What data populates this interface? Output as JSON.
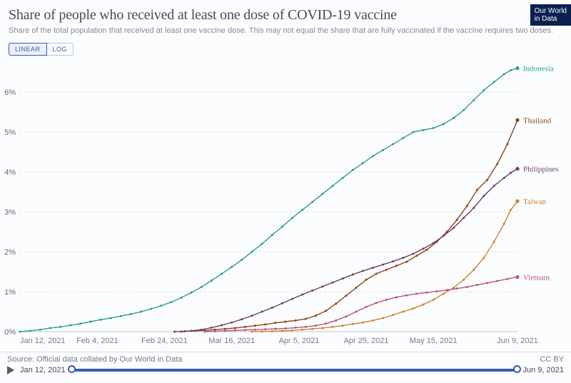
{
  "header": {
    "title": "Share of people who received at least one dose of COVID-19 vaccine",
    "subtitle": "Share of the total population that received at least one vaccine dose. This may not equal the share that are fully vaccinated if the vaccine requires two doses.",
    "logo_line1": "Our World",
    "logo_line2": "in Data"
  },
  "scale": {
    "linear": "LINEAR",
    "log": "LOG",
    "active": "linear"
  },
  "chart": {
    "type": "line",
    "background": "#fbfcfe",
    "grid_color": "#dcdfe6",
    "x_domain_days": [
      0,
      148
    ],
    "ylim": [
      0,
      6.7
    ],
    "yticks": [
      {
        "v": 0,
        "label": "0%"
      },
      {
        "v": 1,
        "label": "1%"
      },
      {
        "v": 2,
        "label": "2%"
      },
      {
        "v": 3,
        "label": "3%"
      },
      {
        "v": 4,
        "label": "4%"
      },
      {
        "v": 5,
        "label": "5%"
      },
      {
        "v": 6,
        "label": "6%"
      }
    ],
    "xticks": [
      {
        "d": 0,
        "label": "Jan 12, 2021"
      },
      {
        "d": 23,
        "label": "Feb 4, 2021"
      },
      {
        "d": 43,
        "label": "Feb 24, 2021"
      },
      {
        "d": 63,
        "label": "Mar 16, 2021"
      },
      {
        "d": 83,
        "label": "Apr 5, 2021"
      },
      {
        "d": 103,
        "label": "Apr 25, 2021"
      },
      {
        "d": 123,
        "label": "May 15, 2021"
      },
      {
        "d": 148,
        "label": "Jun 9, 2021"
      }
    ],
    "marker_radius": 1.5,
    "line_width": 1.4,
    "series": [
      {
        "name": "Indonesia",
        "color": "#2a9d8f",
        "points": [
          [
            0,
            0.0
          ],
          [
            3,
            0.02
          ],
          [
            6,
            0.05
          ],
          [
            9,
            0.09
          ],
          [
            12,
            0.12
          ],
          [
            15,
            0.16
          ],
          [
            18,
            0.2
          ],
          [
            21,
            0.25
          ],
          [
            24,
            0.3
          ],
          [
            27,
            0.34
          ],
          [
            30,
            0.39
          ],
          [
            33,
            0.44
          ],
          [
            36,
            0.5
          ],
          [
            39,
            0.57
          ],
          [
            42,
            0.65
          ],
          [
            45,
            0.74
          ],
          [
            48,
            0.85
          ],
          [
            51,
            0.98
          ],
          [
            54,
            1.12
          ],
          [
            57,
            1.28
          ],
          [
            60,
            1.45
          ],
          [
            63,
            1.62
          ],
          [
            66,
            1.8
          ],
          [
            69,
            2.0
          ],
          [
            72,
            2.2
          ],
          [
            75,
            2.42
          ],
          [
            78,
            2.63
          ],
          [
            81,
            2.85
          ],
          [
            84,
            3.05
          ],
          [
            87,
            3.25
          ],
          [
            90,
            3.45
          ],
          [
            93,
            3.65
          ],
          [
            96,
            3.85
          ],
          [
            99,
            4.05
          ],
          [
            102,
            4.22
          ],
          [
            105,
            4.4
          ],
          [
            108,
            4.55
          ],
          [
            111,
            4.7
          ],
          [
            114,
            4.85
          ],
          [
            117,
            5.0
          ],
          [
            120,
            5.05
          ],
          [
            123,
            5.1
          ],
          [
            126,
            5.2
          ],
          [
            129,
            5.35
          ],
          [
            132,
            5.55
          ],
          [
            135,
            5.8
          ],
          [
            138,
            6.05
          ],
          [
            141,
            6.25
          ],
          [
            144,
            6.45
          ],
          [
            146,
            6.55
          ],
          [
            148,
            6.6
          ]
        ]
      },
      {
        "name": "Thailand",
        "color": "#8b4513",
        "points": [
          [
            46,
            0.0
          ],
          [
            49,
            0.01
          ],
          [
            52,
            0.02
          ],
          [
            55,
            0.03
          ],
          [
            58,
            0.05
          ],
          [
            61,
            0.07
          ],
          [
            64,
            0.09
          ],
          [
            67,
            0.12
          ],
          [
            70,
            0.15
          ],
          [
            73,
            0.18
          ],
          [
            76,
            0.22
          ],
          [
            79,
            0.25
          ],
          [
            82,
            0.28
          ],
          [
            85,
            0.32
          ],
          [
            88,
            0.4
          ],
          [
            91,
            0.52
          ],
          [
            94,
            0.7
          ],
          [
            97,
            0.9
          ],
          [
            100,
            1.1
          ],
          [
            103,
            1.3
          ],
          [
            106,
            1.45
          ],
          [
            109,
            1.55
          ],
          [
            112,
            1.65
          ],
          [
            115,
            1.75
          ],
          [
            118,
            1.9
          ],
          [
            121,
            2.05
          ],
          [
            124,
            2.25
          ],
          [
            127,
            2.5
          ],
          [
            130,
            2.8
          ],
          [
            133,
            3.15
          ],
          [
            136,
            3.55
          ],
          [
            139,
            3.8
          ],
          [
            142,
            4.2
          ],
          [
            145,
            4.7
          ],
          [
            148,
            5.3
          ]
        ]
      },
      {
        "name": "Philippines",
        "color": "#6b3e6b",
        "points": [
          [
            48,
            0.0
          ],
          [
            51,
            0.02
          ],
          [
            54,
            0.05
          ],
          [
            57,
            0.1
          ],
          [
            60,
            0.16
          ],
          [
            63,
            0.23
          ],
          [
            66,
            0.31
          ],
          [
            69,
            0.4
          ],
          [
            72,
            0.5
          ],
          [
            75,
            0.6
          ],
          [
            78,
            0.71
          ],
          [
            81,
            0.82
          ],
          [
            84,
            0.93
          ],
          [
            87,
            1.03
          ],
          [
            90,
            1.13
          ],
          [
            93,
            1.23
          ],
          [
            96,
            1.33
          ],
          [
            99,
            1.43
          ],
          [
            102,
            1.52
          ],
          [
            105,
            1.6
          ],
          [
            108,
            1.68
          ],
          [
            111,
            1.76
          ],
          [
            114,
            1.85
          ],
          [
            117,
            1.95
          ],
          [
            120,
            2.08
          ],
          [
            123,
            2.22
          ],
          [
            126,
            2.4
          ],
          [
            129,
            2.6
          ],
          [
            132,
            2.85
          ],
          [
            135,
            3.1
          ],
          [
            138,
            3.4
          ],
          [
            141,
            3.65
          ],
          [
            144,
            3.85
          ],
          [
            146,
            3.98
          ],
          [
            148,
            4.08
          ]
        ]
      },
      {
        "name": "Taiwan",
        "color": "#c9842c",
        "points": [
          [
            69,
            0.0
          ],
          [
            72,
            0.005
          ],
          [
            75,
            0.01
          ],
          [
            78,
            0.02
          ],
          [
            81,
            0.03
          ],
          [
            84,
            0.05
          ],
          [
            87,
            0.07
          ],
          [
            90,
            0.09
          ],
          [
            93,
            0.12
          ],
          [
            96,
            0.15
          ],
          [
            99,
            0.19
          ],
          [
            102,
            0.23
          ],
          [
            105,
            0.28
          ],
          [
            108,
            0.34
          ],
          [
            111,
            0.42
          ],
          [
            114,
            0.5
          ],
          [
            117,
            0.58
          ],
          [
            120,
            0.68
          ],
          [
            123,
            0.8
          ],
          [
            126,
            0.95
          ],
          [
            129,
            1.1
          ],
          [
            132,
            1.3
          ],
          [
            135,
            1.55
          ],
          [
            138,
            1.85
          ],
          [
            141,
            2.25
          ],
          [
            144,
            2.7
          ],
          [
            146,
            3.05
          ],
          [
            148,
            3.27
          ]
        ]
      },
      {
        "name": "Vietnam",
        "color": "#b8547d",
        "points": [
          [
            55,
            0.0
          ],
          [
            58,
            0.01
          ],
          [
            61,
            0.02
          ],
          [
            64,
            0.03
          ],
          [
            67,
            0.04
          ],
          [
            70,
            0.05
          ],
          [
            73,
            0.06
          ],
          [
            76,
            0.07
          ],
          [
            79,
            0.08
          ],
          [
            82,
            0.1
          ],
          [
            85,
            0.12
          ],
          [
            88,
            0.15
          ],
          [
            91,
            0.2
          ],
          [
            94,
            0.28
          ],
          [
            97,
            0.38
          ],
          [
            100,
            0.5
          ],
          [
            103,
            0.62
          ],
          [
            106,
            0.72
          ],
          [
            109,
            0.8
          ],
          [
            112,
            0.86
          ],
          [
            115,
            0.91
          ],
          [
            118,
            0.95
          ],
          [
            121,
            0.98
          ],
          [
            124,
            1.01
          ],
          [
            127,
            1.04
          ],
          [
            130,
            1.08
          ],
          [
            133,
            1.12
          ],
          [
            136,
            1.17
          ],
          [
            139,
            1.22
          ],
          [
            142,
            1.27
          ],
          [
            145,
            1.32
          ],
          [
            148,
            1.37
          ]
        ]
      }
    ]
  },
  "footer": {
    "source": "Source: Official data collated by Our World in Data",
    "license": "CC BY",
    "start_date": "Jan 12, 2021",
    "end_date": "Jun 9, 2021"
  }
}
